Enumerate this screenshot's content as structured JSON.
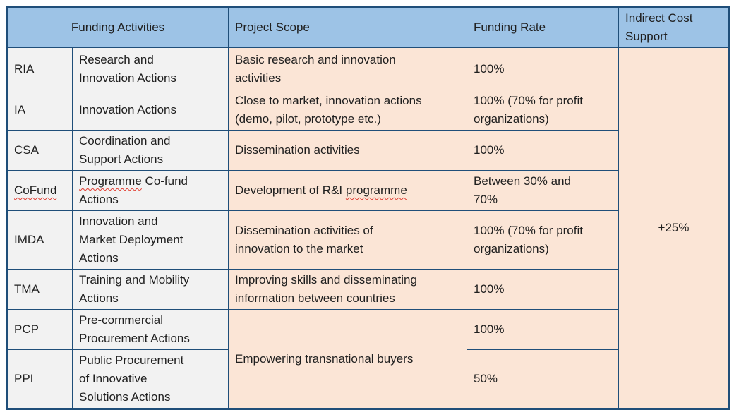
{
  "colors": {
    "header_bg": "#9DC3E6",
    "left_columns_bg": "#F2F2F2",
    "right_columns_bg": "#FBE5D6",
    "border": "#1F4E79",
    "text": "#1f1f1f",
    "spellcheck_red": "#E03C31"
  },
  "table": {
    "header": {
      "funding_activities": "Funding Activities",
      "project_scope": "Project Scope",
      "funding_rate": "Funding Rate",
      "indirect_cost_support_lines": [
        "Indirect Cost",
        "Support"
      ]
    },
    "rows": [
      {
        "abbr": "RIA",
        "name_lines": [
          "Research and",
          "Innovation Actions"
        ],
        "scope_lines": [
          "Basic research and innovation",
          "activities"
        ],
        "rate_lines": [
          "100%"
        ]
      },
      {
        "abbr": "IA",
        "name_lines": [
          "Innovation Actions"
        ],
        "scope_lines": [
          "Close to market, innovation actions",
          "(demo, pilot, prototype etc.)"
        ],
        "rate_lines": [
          "100% (70% for profit",
          "organizations)"
        ]
      },
      {
        "abbr": "CSA",
        "name_lines": [
          "Coordination and",
          "Support Actions"
        ],
        "scope_lines": [
          "Dissemination activities"
        ],
        "rate_lines": [
          "100%"
        ]
      },
      {
        "abbr": "CoFund",
        "name_line1_misspelled": "Programme",
        "name_line1_rest": " Co-fund",
        "name_line2": "Actions",
        "scope_prefix": "Development of R&I ",
        "scope_misspelled": "programme",
        "rate_lines": [
          "Between 30% and",
          "70%"
        ]
      },
      {
        "abbr": "IMDA",
        "name_lines": [
          "Innovation and",
          "Market Deployment",
          "Actions"
        ],
        "scope_lines": [
          "Dissemination activities of",
          "innovation to the market"
        ],
        "rate_lines": [
          "100% (70% for profit",
          "organizations)"
        ]
      },
      {
        "abbr": "TMA",
        "name_lines": [
          "Training and Mobility",
          "Actions"
        ],
        "scope_lines": [
          "Improving skills and disseminating",
          "information between countries"
        ],
        "rate_lines": [
          "100%"
        ]
      },
      {
        "abbr": "PCP",
        "name_lines": [
          "Pre-commercial",
          "Procurement Actions"
        ],
        "scope_merged": "Empowering transnational buyers",
        "rate_lines": [
          "100%"
        ]
      },
      {
        "abbr": "PPI",
        "name_lines": [
          "Public Procurement",
          "of Innovative",
          "Solutions Actions"
        ],
        "rate_lines": [
          "50%"
        ]
      }
    ],
    "indirect_cost_value": "+25%"
  }
}
